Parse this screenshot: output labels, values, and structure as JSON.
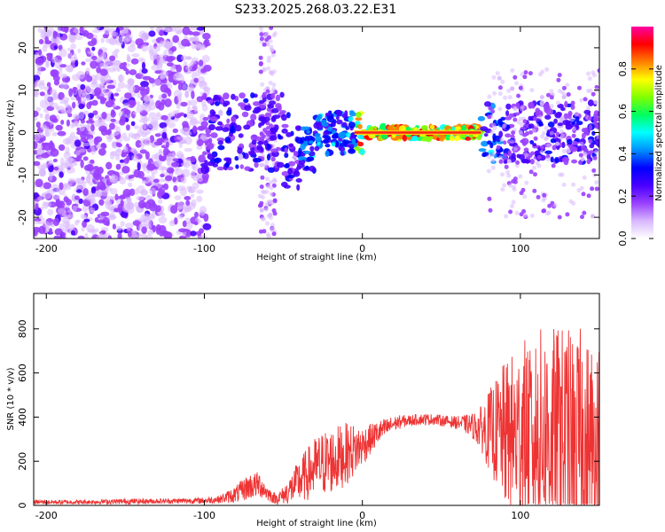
{
  "figure_title": "S233.2025.268.03.22.E31",
  "chart_data": [
    {
      "type": "heatmap",
      "name": "spectrogram",
      "xlabel": "Height of straight line (km)",
      "ylabel": "Frequency (Hz)",
      "xlim": [
        -208,
        150
      ],
      "ylim": [
        -25,
        25
      ],
      "x_ticks": [
        -200,
        -100,
        0,
        100
      ],
      "x_tick_labels": [
        "-200",
        "-100",
        "0",
        "100"
      ],
      "y_ticks": [
        -20,
        -10,
        0,
        10,
        20
      ],
      "y_tick_labels": [
        "-20",
        "-10",
        "0",
        "10",
        "20"
      ],
      "colorbar": {
        "label": "Normalized spectral amplitude",
        "range": [
          0,
          1
        ],
        "ticks": [
          0.0,
          0.2,
          0.4,
          0.6,
          0.8
        ],
        "tick_labels": [
          "0.0",
          "0.2",
          "0.4",
          "0.6",
          "0.8"
        ],
        "colors": [
          "#ffffff",
          "#d8b8ff",
          "#9a40ff",
          "#4800ff",
          "#0000ff",
          "#0090ff",
          "#00ffff",
          "#00ff60",
          "#80ff00",
          "#ffff00",
          "#ff8000",
          "#ff0000",
          "#ff00a0"
        ]
      },
      "dominant_frequency_hz": 0,
      "strong_band_x_range": [
        -5,
        75
      ],
      "grid": false
    },
    {
      "type": "line",
      "name": "snr",
      "xlabel": "Height of straight line (km)",
      "ylabel": "SNR (10 * v/v)",
      "xlim": [
        -208,
        150
      ],
      "ylim": [
        0,
        960
      ],
      "x_ticks": [
        -200,
        -100,
        0,
        100
      ],
      "x_tick_labels": [
        "-200",
        "-100",
        "0",
        "100"
      ],
      "y_ticks": [
        0,
        200,
        400,
        600,
        800
      ],
      "y_tick_labels": [
        "0",
        "200",
        "400",
        "600",
        "800"
      ],
      "color": "#ee3333",
      "grid": false,
      "series": [
        {
          "name": "SNR",
          "x": [
            -208,
            -180,
            -150,
            -120,
            -100,
            -90,
            -80,
            -72,
            -65,
            -60,
            -55,
            -50,
            -45,
            -40,
            -35,
            -30,
            -25,
            -20,
            -15,
            -10,
            -5,
            0,
            5,
            10,
            15,
            20,
            25,
            30,
            35,
            40,
            45,
            50,
            55,
            60,
            65,
            70,
            75,
            80,
            85,
            90,
            95,
            100,
            105,
            110,
            115,
            120,
            125,
            130,
            135,
            140,
            145,
            150
          ],
          "y": [
            15,
            15,
            18,
            20,
            22,
            28,
            50,
            85,
            95,
            55,
            30,
            45,
            75,
            110,
            140,
            170,
            190,
            200,
            215,
            235,
            250,
            270,
            300,
            330,
            350,
            370,
            380,
            385,
            390,
            390,
            390,
            385,
            380,
            375,
            370,
            360,
            350,
            340,
            330,
            320,
            310,
            310,
            320,
            330,
            330,
            320,
            310,
            300,
            290,
            280,
            270,
            265
          ],
          "spread": [
            10,
            10,
            12,
            12,
            14,
            18,
            40,
            60,
            60,
            35,
            25,
            40,
            70,
            100,
            120,
            140,
            150,
            150,
            150,
            140,
            120,
            90,
            70,
            55,
            45,
            35,
            30,
            25,
            25,
            25,
            25,
            25,
            25,
            30,
            40,
            60,
            100,
            180,
            250,
            330,
            380,
            430,
            450,
            470,
            480,
            490,
            500,
            510,
            520,
            520,
            500,
            480
          ],
          "peak_labels": []
        }
      ]
    }
  ]
}
